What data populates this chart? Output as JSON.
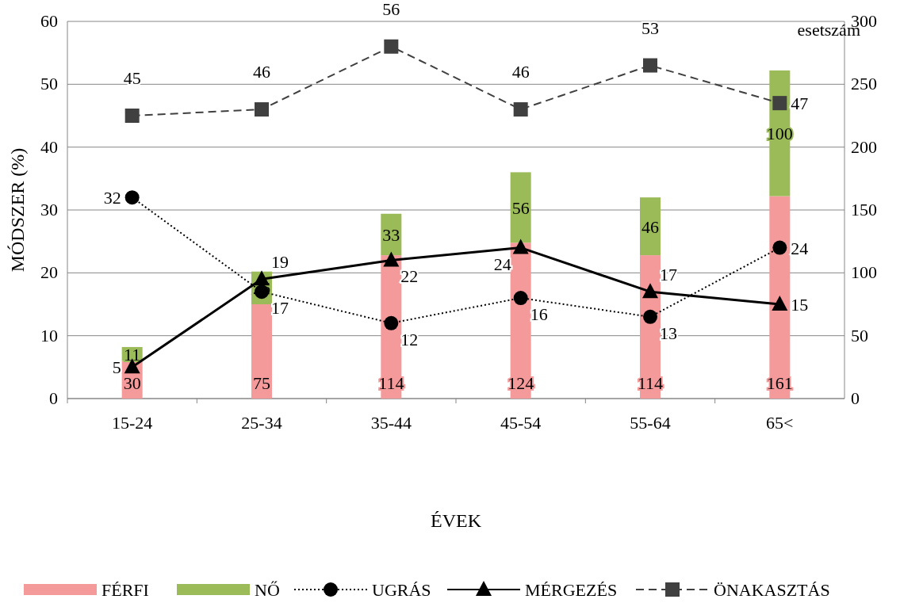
{
  "chart_data": {
    "type": "bar",
    "xlabel": "ÉVEK",
    "ylabel": "MÓDSZER (%)",
    "y2label": "esetszám",
    "categories": [
      "15-24",
      "25-34",
      "35-44",
      "45-54",
      "55-64",
      "65<"
    ],
    "series": [
      {
        "name": "FÉRFI",
        "type": "bar",
        "axis": "y2",
        "color": "#f59a9b",
        "values": [
          30,
          75,
          114,
          124,
          114,
          161
        ]
      },
      {
        "name": "NŐ",
        "type": "bar",
        "axis": "y2",
        "color": "#9bbb59",
        "values": [
          11,
          26,
          33,
          56,
          46,
          100
        ]
      },
      {
        "name": "UGRÁS",
        "type": "line",
        "color": "#000000",
        "marker": "circle",
        "line_style": "dotted",
        "values": [
          32,
          17,
          12,
          16,
          13,
          24
        ]
      },
      {
        "name": "MÉRGEZÉS",
        "type": "line",
        "color": "#000000",
        "marker": "triangle",
        "line_style": "solid",
        "values": [
          5,
          19,
          22,
          24,
          17,
          15
        ]
      },
      {
        "name": "ÖNAKASZTÁS",
        "type": "line",
        "color": "#404040",
        "marker": "square",
        "line_style": "dashed",
        "values": [
          45,
          46,
          56,
          46,
          53,
          47
        ]
      }
    ],
    "stacked": true,
    "ylim": [
      0,
      60
    ],
    "yticks": [
      0,
      10,
      20,
      30,
      40,
      50,
      60
    ],
    "y2lim": [
      0,
      300
    ],
    "y2ticks": [
      0,
      50,
      100,
      150,
      200,
      250,
      300
    ],
    "grid": "y",
    "legend": "bottom",
    "data_labels": true
  }
}
